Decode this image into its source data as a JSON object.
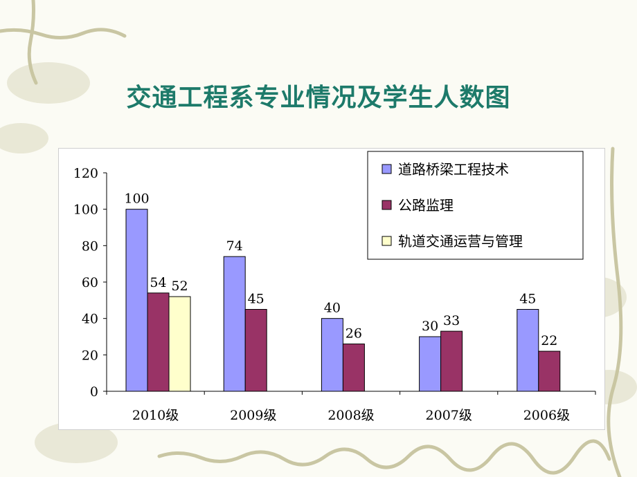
{
  "title": "交通工程系专业情况及学生人数图",
  "colors": {
    "title": "#1d7a6a",
    "series": [
      "#9999ff",
      "#993366",
      "#ffffcc"
    ],
    "decor_vine": "#b8b58a"
  },
  "chart_data": {
    "type": "bar",
    "title": "",
    "xlabel": "",
    "ylabel": "",
    "ylim": [
      0,
      120
    ],
    "yticks": [
      "0",
      "20",
      "40",
      "60",
      "80",
      "100",
      "120"
    ],
    "grid": false,
    "legend_position": "top-right",
    "categories": [
      "2010级",
      "2009级",
      "2008级",
      "2007级",
      "2006级"
    ],
    "series": [
      {
        "name": "道路桥梁工程技术",
        "values": [
          100,
          74,
          40,
          30,
          45
        ]
      },
      {
        "name": "公路监理",
        "values": [
          54,
          45,
          26,
          33,
          22
        ]
      },
      {
        "name": "轨道交通运营与管理",
        "values": [
          52,
          null,
          null,
          null,
          null
        ]
      }
    ]
  }
}
